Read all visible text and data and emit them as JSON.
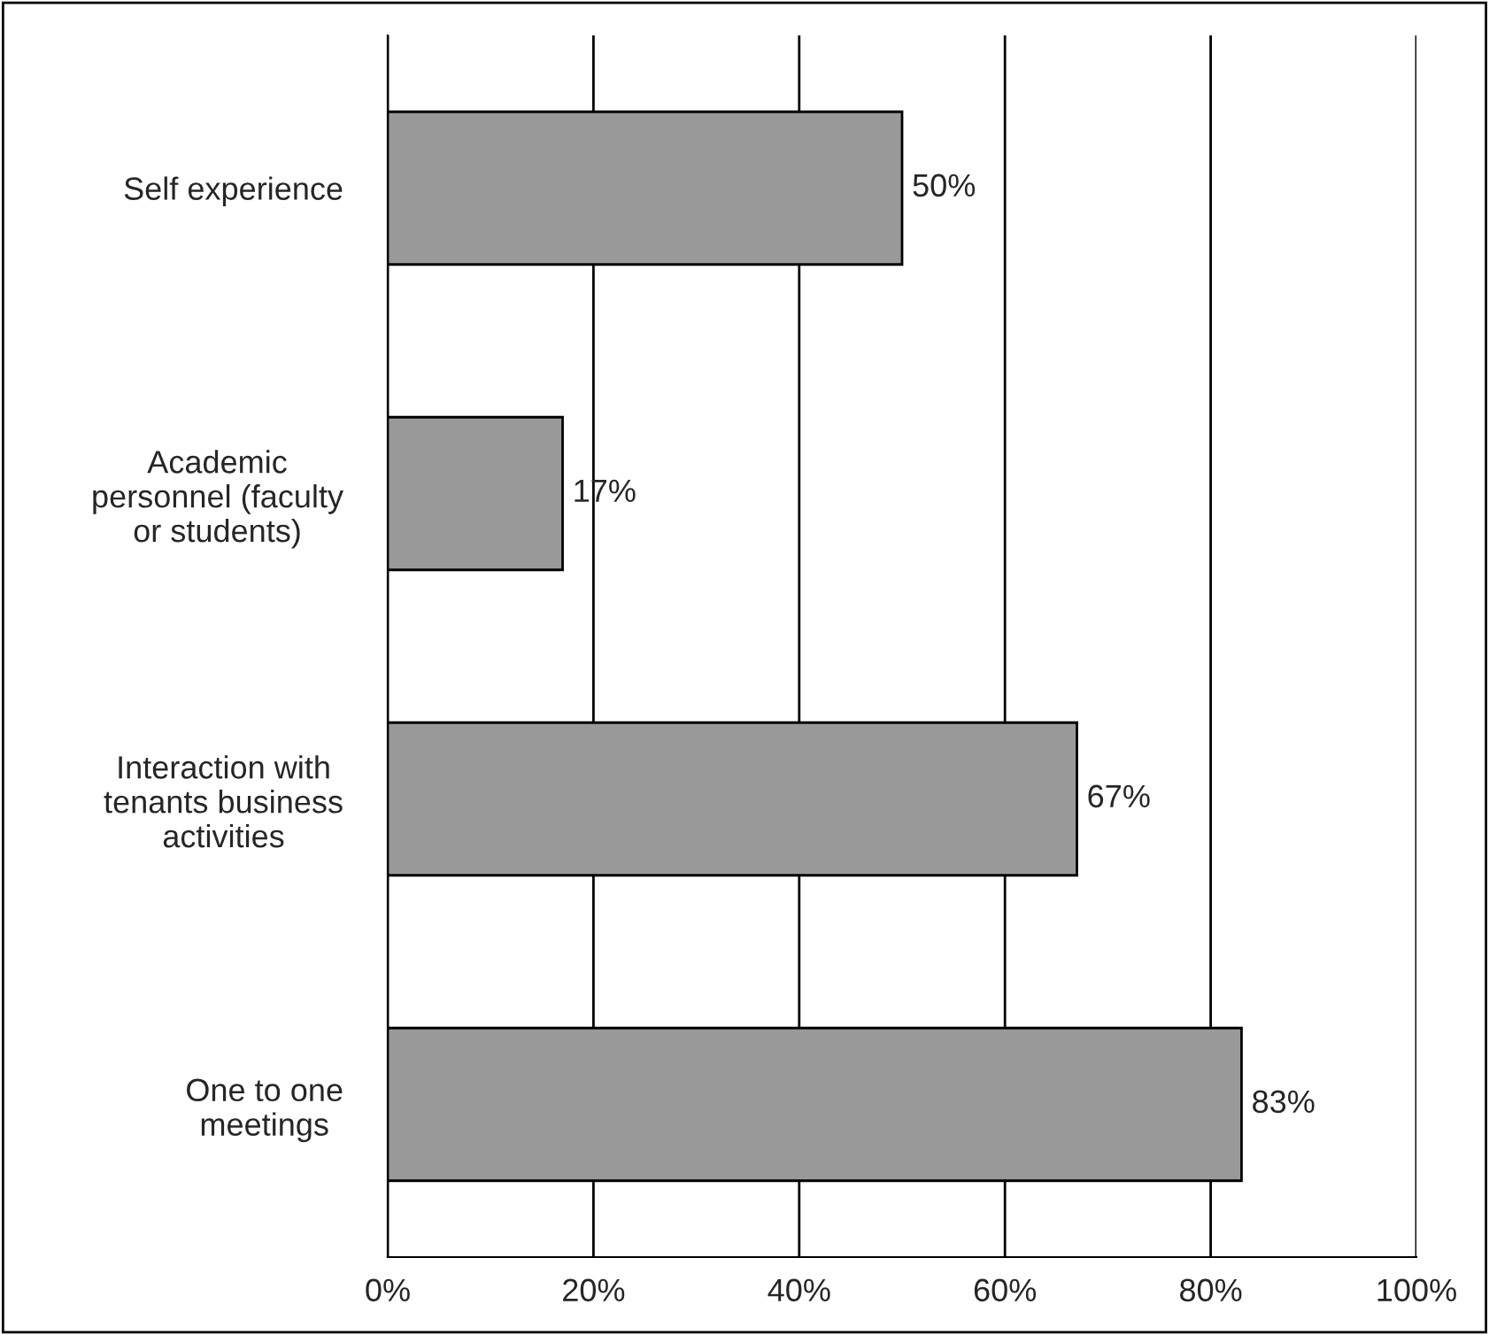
{
  "chart_data": {
    "type": "bar",
    "orientation": "horizontal",
    "categories": [
      "Self experience",
      "Academic\npersonnel (faculty\nor students)",
      "Interaction with\ntenants business\nactivities",
      "One to one\nmeetings"
    ],
    "values": [
      50,
      17,
      67,
      83
    ],
    "value_labels": [
      "50%",
      "17%",
      "67%",
      "83%"
    ],
    "color": "#999999",
    "xlim": [
      0,
      100
    ],
    "xticks": [
      {
        "value": 0,
        "label": "0%"
      },
      {
        "value": 20,
        "label": "20%"
      },
      {
        "value": 40,
        "label": "40%"
      },
      {
        "value": 60,
        "label": "60%"
      },
      {
        "value": 80,
        "label": "80%"
      },
      {
        "value": 100,
        "label": "100%"
      }
    ],
    "grid": "x"
  }
}
